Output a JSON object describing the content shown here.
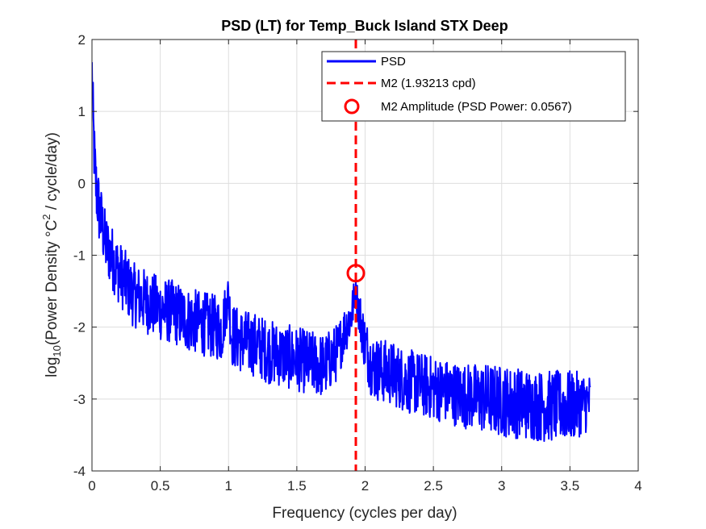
{
  "chart_data": {
    "type": "line",
    "title": "PSD (LT) for Temp_Buck Island STX Deep",
    "xlabel": "Frequency (cycles per day)",
    "ylabel": {
      "prefix": "log",
      "subscript": "10",
      "middle": "(Power Density °C",
      "superscript": "2",
      "suffix": " / cycle/day)"
    },
    "xlim": [
      0,
      4
    ],
    "ylim": [
      -4,
      2
    ],
    "x_ticks": [
      0,
      0.5,
      1,
      1.5,
      2,
      2.5,
      3,
      3.5,
      4
    ],
    "x_tick_labels": [
      "0",
      "0.5",
      "1",
      "1.5",
      "2",
      "2.5",
      "3",
      "3.5",
      "4"
    ],
    "y_ticks": [
      -4,
      -3,
      -2,
      -1,
      0,
      1,
      2
    ],
    "y_tick_labels": [
      "-4",
      "-3",
      "-2",
      "-1",
      "0",
      "1",
      "2"
    ],
    "grid": true,
    "legend_position": "top-right",
    "series": [
      {
        "name": "PSD",
        "color": "#0000ff",
        "kind": "line",
        "x": [
          0.0,
          0.01,
          0.02,
          0.03,
          0.05,
          0.08,
          0.1,
          0.15,
          0.2,
          0.25,
          0.3,
          0.4,
          0.5,
          0.6,
          0.7,
          0.8,
          0.9,
          0.95,
          1.0,
          1.02,
          1.05,
          1.1,
          1.2,
          1.3,
          1.4,
          1.5,
          1.6,
          1.7,
          1.8,
          1.85,
          1.9,
          1.93,
          1.96,
          2.0,
          2.05,
          2.1,
          2.2,
          2.3,
          2.5,
          2.7,
          2.9,
          3.1,
          3.3,
          3.5,
          3.65
        ],
        "y": [
          1.6,
          0.8,
          0.3,
          0.0,
          -0.3,
          -0.6,
          -0.8,
          -1.0,
          -1.2,
          -1.35,
          -1.5,
          -1.6,
          -1.7,
          -1.75,
          -1.85,
          -1.9,
          -1.95,
          -2.0,
          -1.5,
          -2.05,
          -2.1,
          -2.15,
          -2.2,
          -2.3,
          -2.35,
          -2.4,
          -2.45,
          -2.5,
          -2.3,
          -2.0,
          -1.8,
          -1.45,
          -1.8,
          -2.2,
          -2.5,
          -2.55,
          -2.6,
          -2.7,
          -2.8,
          -2.9,
          -2.95,
          -3.0,
          -3.05,
          -3.05,
          -3.0
        ],
        "noise_amplitude": [
          0.4,
          0.5,
          0.5,
          0.5,
          0.5,
          0.45,
          0.45,
          0.45,
          0.45,
          0.45,
          0.45,
          0.45,
          0.45,
          0.45,
          0.45,
          0.45,
          0.45,
          0.45,
          0.3,
          0.45,
          0.45,
          0.45,
          0.45,
          0.45,
          0.45,
          0.45,
          0.45,
          0.45,
          0.4,
          0.35,
          0.35,
          0.2,
          0.35,
          0.4,
          0.45,
          0.45,
          0.45,
          0.45,
          0.45,
          0.45,
          0.5,
          0.5,
          0.5,
          0.5,
          0.4
        ]
      },
      {
        "name": "M2 (1.93213 cpd)",
        "color": "#ff0000",
        "kind": "vline",
        "x": 1.93213
      },
      {
        "name": "M2 Amplitude (PSD Power: 0.0567)",
        "color": "#ff0000",
        "kind": "marker",
        "x": 1.93213,
        "y": -1.25
      }
    ]
  }
}
